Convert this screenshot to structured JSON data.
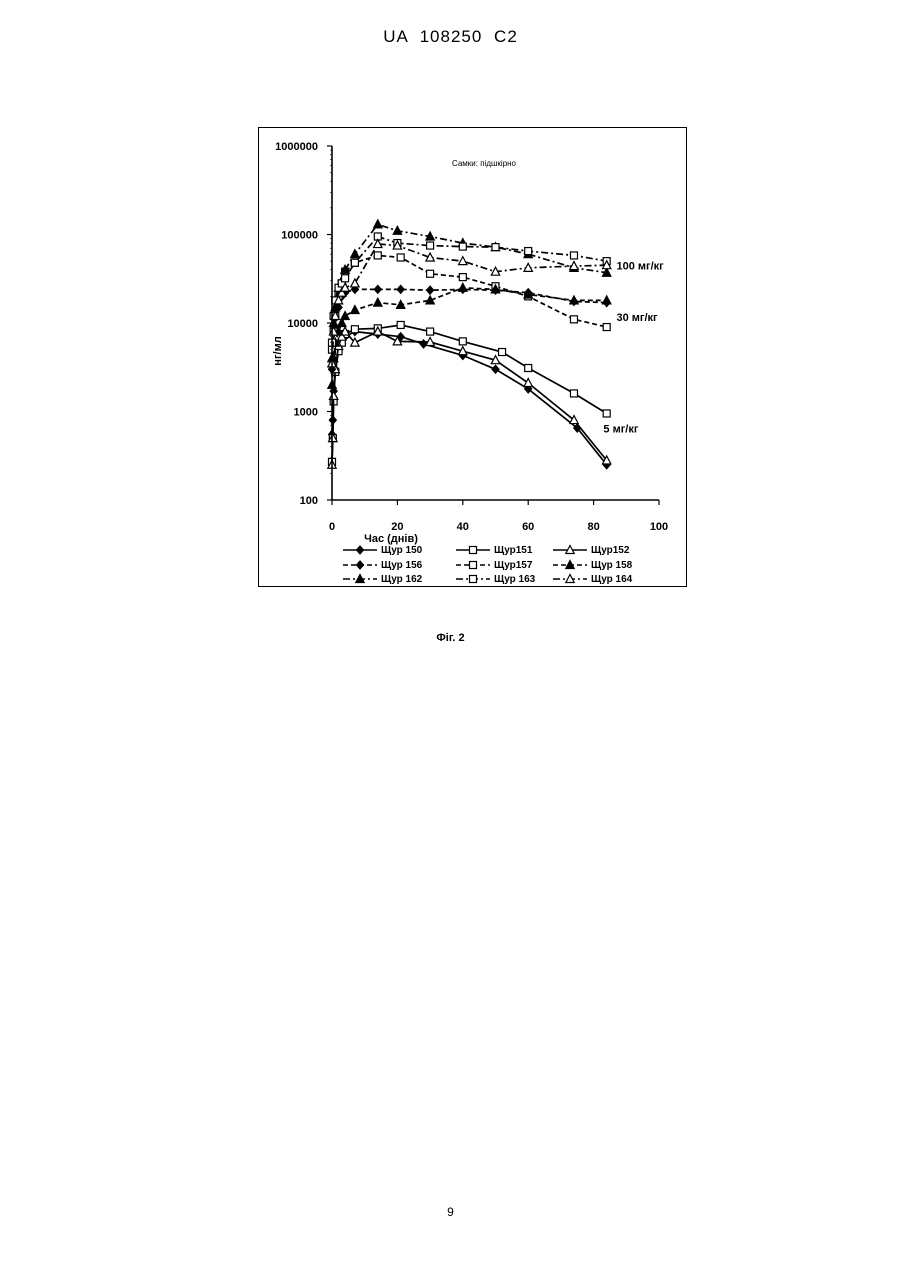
{
  "header": {
    "patent_number": "UA   108250   C2"
  },
  "figure": {
    "caption": "Фіг. 2"
  },
  "footer": {
    "page_number": "9"
  },
  "chart_data": {
    "type": "line",
    "title": "Самки: підшкірно",
    "xlabel": "Час (днів)",
    "ylabel": "нг/мл",
    "xlim": [
      0,
      100
    ],
    "ylim": [
      100,
      1000000
    ],
    "y_scale": "log",
    "x_ticks": [
      "0",
      "20",
      "40",
      "60",
      "80",
      "100"
    ],
    "y_ticks": [
      "100",
      "1000",
      "10000",
      "100000",
      "1000000"
    ],
    "grid": false,
    "legend_position": "bottom",
    "annotations": [
      {
        "text": "100 мг/кг",
        "x": 87,
        "y": 40000
      },
      {
        "text": "30 мг/кг",
        "x": 87,
        "y": 10500
      },
      {
        "text": "5 мг/кг",
        "x": 83,
        "y": 580
      }
    ],
    "series": [
      {
        "name": "Щур 150",
        "dose": "5 мг/кг",
        "marker": "diamond-filled",
        "line": "solid",
        "x": [
          0,
          0.25,
          0.5,
          1,
          2,
          3,
          4,
          7,
          14,
          21,
          28,
          40,
          50,
          60,
          75,
          84
        ],
        "y": [
          550,
          800,
          1700,
          3000,
          5000,
          6000,
          7000,
          8000,
          7500,
          7000,
          5800,
          4300,
          3000,
          1800,
          650,
          250
        ]
      },
      {
        "name": "Щур151",
        "dose": "5 мг/кг",
        "marker": "square-open",
        "line": "solid",
        "x": [
          0,
          0.25,
          0.5,
          1,
          2,
          3,
          4,
          7,
          14,
          21,
          30,
          40,
          52,
          60,
          74,
          84
        ],
        "y": [
          270,
          500,
          1300,
          2800,
          4800,
          6000,
          7500,
          8500,
          8700,
          9500,
          8000,
          6200,
          4700,
          3100,
          1600,
          950
        ]
      },
      {
        "name": "Щур152",
        "dose": "5 мг/кг",
        "marker": "triangle-open",
        "line": "solid",
        "x": [
          0,
          0.25,
          0.5,
          1,
          2,
          3,
          4,
          7,
          14,
          20,
          30,
          40,
          50,
          60,
          74,
          84
        ],
        "y": [
          250,
          500,
          1500,
          3000,
          5500,
          7000,
          8000,
          6000,
          8000,
          6200,
          6100,
          4800,
          3800,
          2100,
          800,
          280
        ]
      },
      {
        "name": "Щур 156",
        "dose": "30 мг/кг",
        "marker": "diamond-filled",
        "line": "dashed",
        "x": [
          0,
          0.5,
          1,
          2,
          3,
          4,
          7,
          14,
          21,
          30,
          40,
          50,
          60,
          74,
          84
        ],
        "y": [
          3000,
          6000,
          9000,
          15000,
          20000,
          22000,
          24000,
          24000,
          24000,
          23500,
          24000,
          23500,
          22000,
          17500,
          17000
        ]
      },
      {
        "name": "Щур157",
        "dose": "30 мг/кг",
        "marker": "square-open",
        "line": "dashed",
        "x": [
          0,
          0.5,
          1,
          2,
          3,
          4,
          7,
          14,
          21,
          30,
          40,
          50,
          60,
          74,
          84
        ],
        "y": [
          5000,
          8000,
          12000,
          20000,
          28000,
          38000,
          48000,
          58000,
          55000,
          36000,
          33000,
          26000,
          20000,
          11000,
          9000
        ]
      },
      {
        "name": "Щур 158",
        "dose": "30 мг/кг",
        "marker": "triangle-filled",
        "line": "dashed",
        "x": [
          0,
          0.5,
          1,
          2,
          3,
          4,
          7,
          14,
          21,
          30,
          40,
          50,
          60,
          74,
          84
        ],
        "y": [
          2000,
          4000,
          6000,
          8000,
          10000,
          12000,
          14000,
          17000,
          16000,
          18000,
          25000,
          24000,
          21000,
          18000,
          18000
        ]
      },
      {
        "name": "Щур 162",
        "dose": "100 мг/кг",
        "marker": "triangle-filled",
        "line": "dashdot",
        "x": [
          0,
          0.5,
          1,
          2,
          3,
          4,
          7,
          14,
          20,
          30,
          40,
          50,
          60,
          74,
          84
        ],
        "y": [
          4000,
          10000,
          15000,
          25000,
          30000,
          40000,
          60000,
          130000,
          110000,
          95000,
          80000,
          72000,
          60000,
          42000,
          37000
        ]
      },
      {
        "name": "Щур 163",
        "dose": "100 мг/кг",
        "marker": "square-open",
        "line": "dashdot",
        "x": [
          0,
          0.5,
          1,
          2,
          3,
          4,
          7,
          14,
          20,
          30,
          40,
          50,
          60,
          74,
          84
        ],
        "y": [
          6000,
          12000,
          18000,
          25000,
          28000,
          32000,
          48000,
          95000,
          80000,
          75000,
          73000,
          72000,
          65000,
          58000,
          50000
        ]
      },
      {
        "name": "Щур 164",
        "dose": "100 мг/кг",
        "marker": "triangle-open",
        "line": "dashdot",
        "x": [
          0,
          0.5,
          1,
          2,
          3,
          4,
          7,
          14,
          20,
          30,
          40,
          50,
          60,
          74,
          84
        ],
        "y": [
          3500,
          8000,
          12000,
          18000,
          22000,
          25000,
          28000,
          78000,
          75000,
          55000,
          50000,
          38000,
          42000,
          44000,
          45000
        ]
      }
    ]
  }
}
